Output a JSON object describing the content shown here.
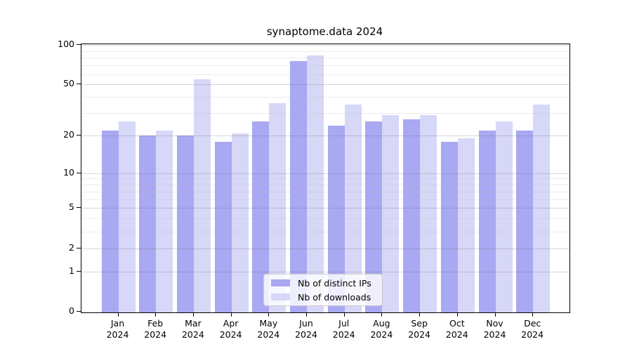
{
  "chart_data": {
    "type": "bar",
    "title": "synaptome.data 2024",
    "categories": [
      "Jan",
      "Feb",
      "Mar",
      "Apr",
      "May",
      "Jun",
      "Jul",
      "Aug",
      "Sep",
      "Oct",
      "Nov",
      "Dec"
    ],
    "year_label": "2024",
    "series": [
      {
        "name": "Nb of distinct IPs",
        "color": "#a8a8f3",
        "values": [
          22,
          20,
          20,
          18,
          26,
          75,
          24,
          26,
          27,
          18,
          22,
          22
        ]
      },
      {
        "name": "Nb of downloads",
        "color": "#d7d7f8",
        "values": [
          26,
          22,
          55,
          21,
          36,
          83,
          35,
          29,
          29,
          19,
          26,
          35
        ]
      }
    ],
    "yscale": "log1p",
    "ylim": [
      0,
      101
    ],
    "yticks": [
      100,
      50,
      20,
      10,
      5,
      2,
      1,
      0
    ],
    "major_gridlines": [
      1,
      2,
      5,
      10,
      20,
      50,
      100
    ],
    "minor_gridlines": [
      3,
      4,
      6,
      7,
      8,
      9,
      30,
      40,
      60,
      70,
      80,
      90
    ],
    "grid": true,
    "legend_position": "bottom-center",
    "xlabel": "",
    "ylabel": ""
  }
}
